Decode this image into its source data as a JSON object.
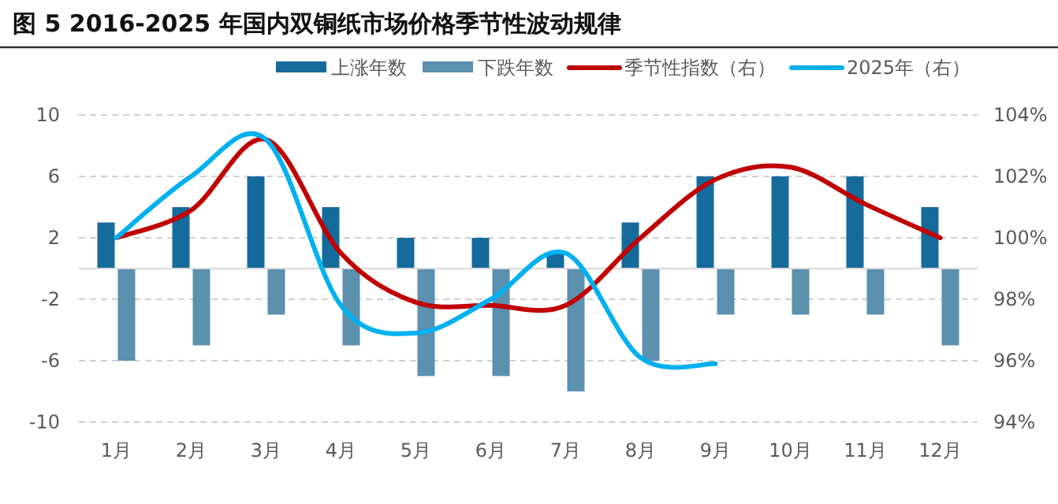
{
  "chart_data": {
    "type": "bar",
    "title": "图 5 2016-2025 年国内双铜纸市场价格季节性波动规律",
    "categories": [
      "1月",
      "2月",
      "3月",
      "4月",
      "5月",
      "6月",
      "7月",
      "8月",
      "9月",
      "10月",
      "11月",
      "12月"
    ],
    "series": [
      {
        "name": "上涨年数",
        "color": "#156b9b",
        "values": [
          3,
          4,
          6,
          4,
          2,
          2,
          1,
          3,
          6,
          6,
          6,
          4
        ]
      },
      {
        "name": "下跌年数",
        "color": "#5b90ae",
        "values": [
          -6,
          -5,
          -3,
          -5,
          -7,
          -7,
          -8,
          -6,
          -3,
          -3,
          -3,
          -5
        ]
      },
      {
        "name": "季节性指数（右）",
        "type": "line",
        "axis": "y2",
        "color": "#c00000",
        "values": [
          100.0,
          100.9,
          103.2,
          99.5,
          97.9,
          97.8,
          97.8,
          100.0,
          101.9,
          102.3,
          101.1,
          100.0
        ]
      },
      {
        "name": "2025年（右）",
        "type": "line",
        "axis": "y2",
        "color": "#00b0f0",
        "values": [
          100.0,
          102.0,
          103.2,
          97.8,
          96.9,
          98.0,
          99.5,
          96.1,
          95.9,
          null,
          null,
          null
        ]
      }
    ],
    "ylim": [
      -10,
      10
    ],
    "yticks": [
      -10,
      -6,
      -2,
      2,
      6,
      10
    ],
    "y2lim": [
      94,
      104
    ],
    "y2ticks": [
      {
        "value": 94,
        "label": "94%"
      },
      {
        "value": 96,
        "label": "96%"
      },
      {
        "value": 98,
        "label": "98%"
      },
      {
        "value": 100,
        "label": "100%"
      },
      {
        "value": 102,
        "label": "102%"
      },
      {
        "value": 104,
        "label": "104%"
      }
    ],
    "grid": "y",
    "legend": "top"
  }
}
